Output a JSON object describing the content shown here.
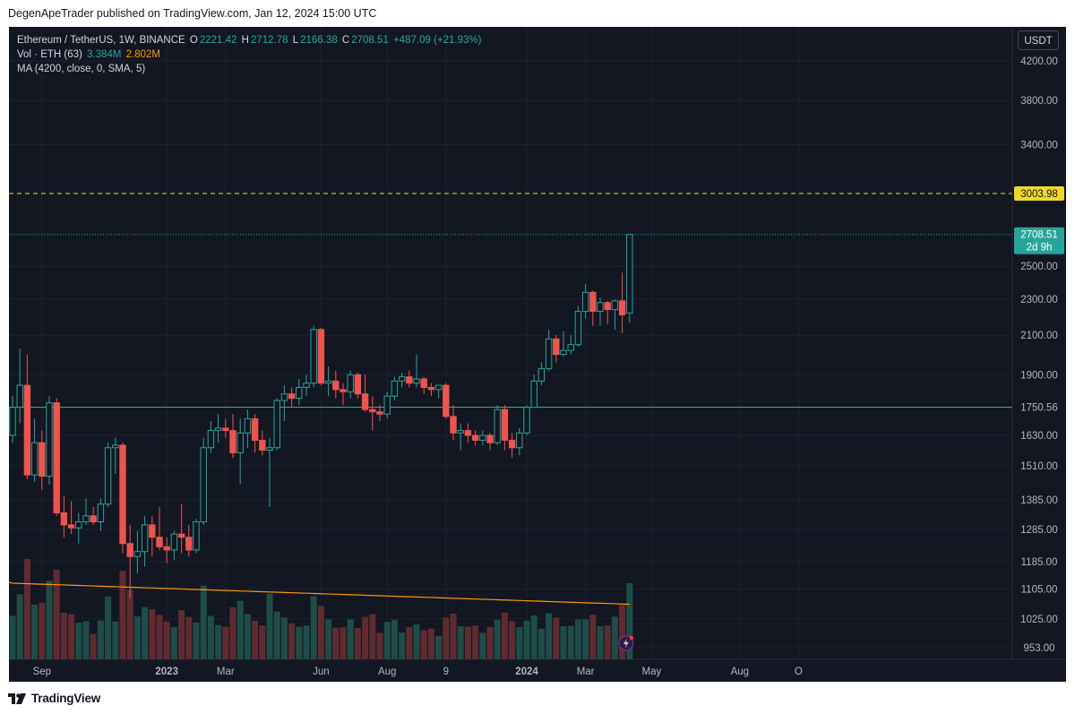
{
  "header": {
    "publisher_line": "DegenApeTrader published on TradingView.com, Jan 12, 2024 15:00 UTC"
  },
  "legend": {
    "symbol": "Ethereum / TetherUS, 1W, BINANCE",
    "o_label": "O",
    "o_value": "2221.42",
    "h_label": "H",
    "h_value": "2712.78",
    "l_label": "L",
    "l_value": "2166.38",
    "c_label": "C",
    "c_value": "2708.51",
    "change": "+487.09 (+21.93%)",
    "vol_label": "Vol · ETH (63)",
    "vol_value_1": "3.384M",
    "vol_value_2": "2.802M",
    "ma_label": "MA (4200, close, 0, SMA, 5)"
  },
  "currency_button": "USDT",
  "footer": {
    "brand": "TradingView"
  },
  "colors": {
    "up": "#26a69a",
    "down": "#ef5350",
    "background": "#131722",
    "level_yellow": "#f0d82a",
    "level_green": "#4caf50",
    "ma_line": "#ff9800"
  },
  "chart_data": {
    "type": "candlestick",
    "symbol": "ETH/USDT",
    "interval": "1W",
    "y_scale": "log",
    "y_ticks": [
      953,
      1025,
      1105,
      1185,
      1285,
      1385,
      1510,
      1630,
      1750,
      1900,
      2100,
      2300,
      2500,
      2708.51,
      3003.98,
      3400,
      3800,
      4200
    ],
    "y_tick_labels": [
      "953.00",
      "1025.00",
      "1105.00",
      "1185.00",
      "1285.00",
      "1385.00",
      "1510.00",
      "1630.00",
      "1750.56",
      "1900.00",
      "2100.00",
      "2300.00",
      "2500.00",
      "2708.51",
      "3003.98",
      "3400.00",
      "3800.00",
      "4200.00"
    ],
    "x_ticks": [
      {
        "label": "Sep",
        "index": 4
      },
      {
        "label": "2023",
        "index": 21
      },
      {
        "label": "Mar",
        "index": 29
      },
      {
        "label": "Jun",
        "index": 42
      },
      {
        "label": "Aug",
        "index": 51
      },
      {
        "label": "9",
        "index": 59
      },
      {
        "label": "2024",
        "index": 70
      },
      {
        "label": "Mar",
        "index": 78
      },
      {
        "label": "May",
        "index": 87
      },
      {
        "label": "Aug",
        "index": 99
      },
      {
        "label": "O",
        "index": 107
      }
    ],
    "horizontal_levels": [
      {
        "value": 3003.98,
        "label": "3003.98",
        "style": "dashed",
        "color": "#f0d82a"
      },
      {
        "value": 1750.56,
        "label": "1750.56",
        "style": "solid",
        "color": "#4caf50"
      }
    ],
    "last_price": {
      "value": 2708.51,
      "label": "2708.51",
      "countdown": "2d 9h"
    },
    "candles": [
      {
        "o": 1630,
        "h": 1800,
        "l": 1600,
        "c": 1750
      },
      {
        "o": 1750,
        "h": 2030,
        "l": 1680,
        "c": 1850
      },
      {
        "o": 1850,
        "h": 2000,
        "l": 1460,
        "c": 1475
      },
      {
        "o": 1475,
        "h": 1700,
        "l": 1450,
        "c": 1600
      },
      {
        "o": 1600,
        "h": 1650,
        "l": 1420,
        "c": 1470
      },
      {
        "o": 1470,
        "h": 1800,
        "l": 1440,
        "c": 1770
      },
      {
        "o": 1770,
        "h": 1790,
        "l": 1330,
        "c": 1340
      },
      {
        "o": 1340,
        "h": 1400,
        "l": 1260,
        "c": 1300
      },
      {
        "o": 1300,
        "h": 1380,
        "l": 1270,
        "c": 1290
      },
      {
        "o": 1290,
        "h": 1340,
        "l": 1240,
        "c": 1310
      },
      {
        "o": 1310,
        "h": 1390,
        "l": 1300,
        "c": 1330
      },
      {
        "o": 1330,
        "h": 1360,
        "l": 1300,
        "c": 1310
      },
      {
        "o": 1310,
        "h": 1390,
        "l": 1280,
        "c": 1370
      },
      {
        "o": 1370,
        "h": 1600,
        "l": 1360,
        "c": 1580
      },
      {
        "o": 1580,
        "h": 1620,
        "l": 1480,
        "c": 1590
      },
      {
        "o": 1590,
        "h": 1600,
        "l": 1210,
        "c": 1240
      },
      {
        "o": 1240,
        "h": 1300,
        "l": 1080,
        "c": 1200
      },
      {
        "o": 1200,
        "h": 1280,
        "l": 1150,
        "c": 1215
      },
      {
        "o": 1215,
        "h": 1330,
        "l": 1170,
        "c": 1300
      },
      {
        "o": 1300,
        "h": 1330,
        "l": 1200,
        "c": 1260
      },
      {
        "o": 1260,
        "h": 1360,
        "l": 1220,
        "c": 1230
      },
      {
        "o": 1230,
        "h": 1260,
        "l": 1180,
        "c": 1220
      },
      {
        "o": 1220,
        "h": 1280,
        "l": 1190,
        "c": 1270
      },
      {
        "o": 1270,
        "h": 1370,
        "l": 1210,
        "c": 1260
      },
      {
        "o": 1260,
        "h": 1300,
        "l": 1200,
        "c": 1220
      },
      {
        "o": 1220,
        "h": 1320,
        "l": 1210,
        "c": 1310
      },
      {
        "o": 1310,
        "h": 1620,
        "l": 1300,
        "c": 1580
      },
      {
        "o": 1580,
        "h": 1690,
        "l": 1560,
        "c": 1650
      },
      {
        "o": 1650,
        "h": 1720,
        "l": 1600,
        "c": 1660
      },
      {
        "o": 1660,
        "h": 1700,
        "l": 1620,
        "c": 1650
      },
      {
        "o": 1650,
        "h": 1720,
        "l": 1540,
        "c": 1560
      },
      {
        "o": 1560,
        "h": 1700,
        "l": 1440,
        "c": 1640
      },
      {
        "o": 1640,
        "h": 1740,
        "l": 1580,
        "c": 1700
      },
      {
        "o": 1700,
        "h": 1720,
        "l": 1560,
        "c": 1610
      },
      {
        "o": 1610,
        "h": 1650,
        "l": 1550,
        "c": 1570
      },
      {
        "o": 1570,
        "h": 1620,
        "l": 1360,
        "c": 1580
      },
      {
        "o": 1580,
        "h": 1790,
        "l": 1570,
        "c": 1780
      },
      {
        "o": 1780,
        "h": 1850,
        "l": 1690,
        "c": 1810
      },
      {
        "o": 1810,
        "h": 1840,
        "l": 1750,
        "c": 1790
      },
      {
        "o": 1790,
        "h": 1880,
        "l": 1760,
        "c": 1840
      },
      {
        "o": 1840,
        "h": 1900,
        "l": 1800,
        "c": 1860
      },
      {
        "o": 1860,
        "h": 2150,
        "l": 1840,
        "c": 2130
      },
      {
        "o": 2130,
        "h": 2140,
        "l": 1850,
        "c": 1860
      },
      {
        "o": 1860,
        "h": 1940,
        "l": 1800,
        "c": 1870
      },
      {
        "o": 1870,
        "h": 1920,
        "l": 1790,
        "c": 1830
      },
      {
        "o": 1830,
        "h": 1860,
        "l": 1760,
        "c": 1820
      },
      {
        "o": 1820,
        "h": 1920,
        "l": 1790,
        "c": 1900
      },
      {
        "o": 1900,
        "h": 1910,
        "l": 1790,
        "c": 1810
      },
      {
        "o": 1810,
        "h": 1900,
        "l": 1730,
        "c": 1740
      },
      {
        "o": 1740,
        "h": 1800,
        "l": 1650,
        "c": 1730
      },
      {
        "o": 1730,
        "h": 1760,
        "l": 1690,
        "c": 1720
      },
      {
        "o": 1720,
        "h": 1820,
        "l": 1700,
        "c": 1800
      },
      {
        "o": 1800,
        "h": 1890,
        "l": 1780,
        "c": 1870
      },
      {
        "o": 1870,
        "h": 1910,
        "l": 1840,
        "c": 1890
      },
      {
        "o": 1890,
        "h": 1920,
        "l": 1840,
        "c": 1860
      },
      {
        "o": 1860,
        "h": 2000,
        "l": 1840,
        "c": 1880
      },
      {
        "o": 1880,
        "h": 1890,
        "l": 1810,
        "c": 1840
      },
      {
        "o": 1840,
        "h": 1860,
        "l": 1800,
        "c": 1830
      },
      {
        "o": 1830,
        "h": 1850,
        "l": 1790,
        "c": 1850
      },
      {
        "o": 1850,
        "h": 1860,
        "l": 1700,
        "c": 1710
      },
      {
        "o": 1710,
        "h": 1760,
        "l": 1610,
        "c": 1640
      },
      {
        "o": 1640,
        "h": 1680,
        "l": 1570,
        "c": 1650
      },
      {
        "o": 1650,
        "h": 1680,
        "l": 1600,
        "c": 1630
      },
      {
        "o": 1630,
        "h": 1650,
        "l": 1590,
        "c": 1610
      },
      {
        "o": 1610,
        "h": 1650,
        "l": 1590,
        "c": 1630
      },
      {
        "o": 1630,
        "h": 1640,
        "l": 1570,
        "c": 1600
      },
      {
        "o": 1600,
        "h": 1760,
        "l": 1590,
        "c": 1740
      },
      {
        "o": 1740,
        "h": 1760,
        "l": 1570,
        "c": 1610
      },
      {
        "o": 1610,
        "h": 1640,
        "l": 1540,
        "c": 1580
      },
      {
        "o": 1580,
        "h": 1660,
        "l": 1550,
        "c": 1640
      },
      {
        "o": 1640,
        "h": 1760,
        "l": 1630,
        "c": 1750
      },
      {
        "o": 1750,
        "h": 1900,
        "l": 1750,
        "c": 1870
      },
      {
        "o": 1870,
        "h": 1960,
        "l": 1850,
        "c": 1930
      },
      {
        "o": 1930,
        "h": 2130,
        "l": 1920,
        "c": 2080
      },
      {
        "o": 2080,
        "h": 2100,
        "l": 1960,
        "c": 2000
      },
      {
        "o": 2000,
        "h": 2120,
        "l": 1990,
        "c": 2020
      },
      {
        "o": 2020,
        "h": 2100,
        "l": 2000,
        "c": 2050
      },
      {
        "o": 2050,
        "h": 2260,
        "l": 2040,
        "c": 2230
      },
      {
        "o": 2230,
        "h": 2390,
        "l": 2190,
        "c": 2340
      },
      {
        "o": 2340,
        "h": 2350,
        "l": 2150,
        "c": 2230
      },
      {
        "o": 2230,
        "h": 2310,
        "l": 2150,
        "c": 2280
      },
      {
        "o": 2280,
        "h": 2290,
        "l": 2160,
        "c": 2240
      },
      {
        "o": 2240,
        "h": 2300,
        "l": 2130,
        "c": 2290
      },
      {
        "o": 2290,
        "h": 2460,
        "l": 2110,
        "c": 2210
      },
      {
        "o": 2221.42,
        "h": 2712.78,
        "l": 2166.38,
        "c": 2708.51
      }
    ],
    "volume_series_name": "Vol · ETH (63)",
    "ma_series_name": "MA (4200, close, 0, SMA, 5)"
  }
}
